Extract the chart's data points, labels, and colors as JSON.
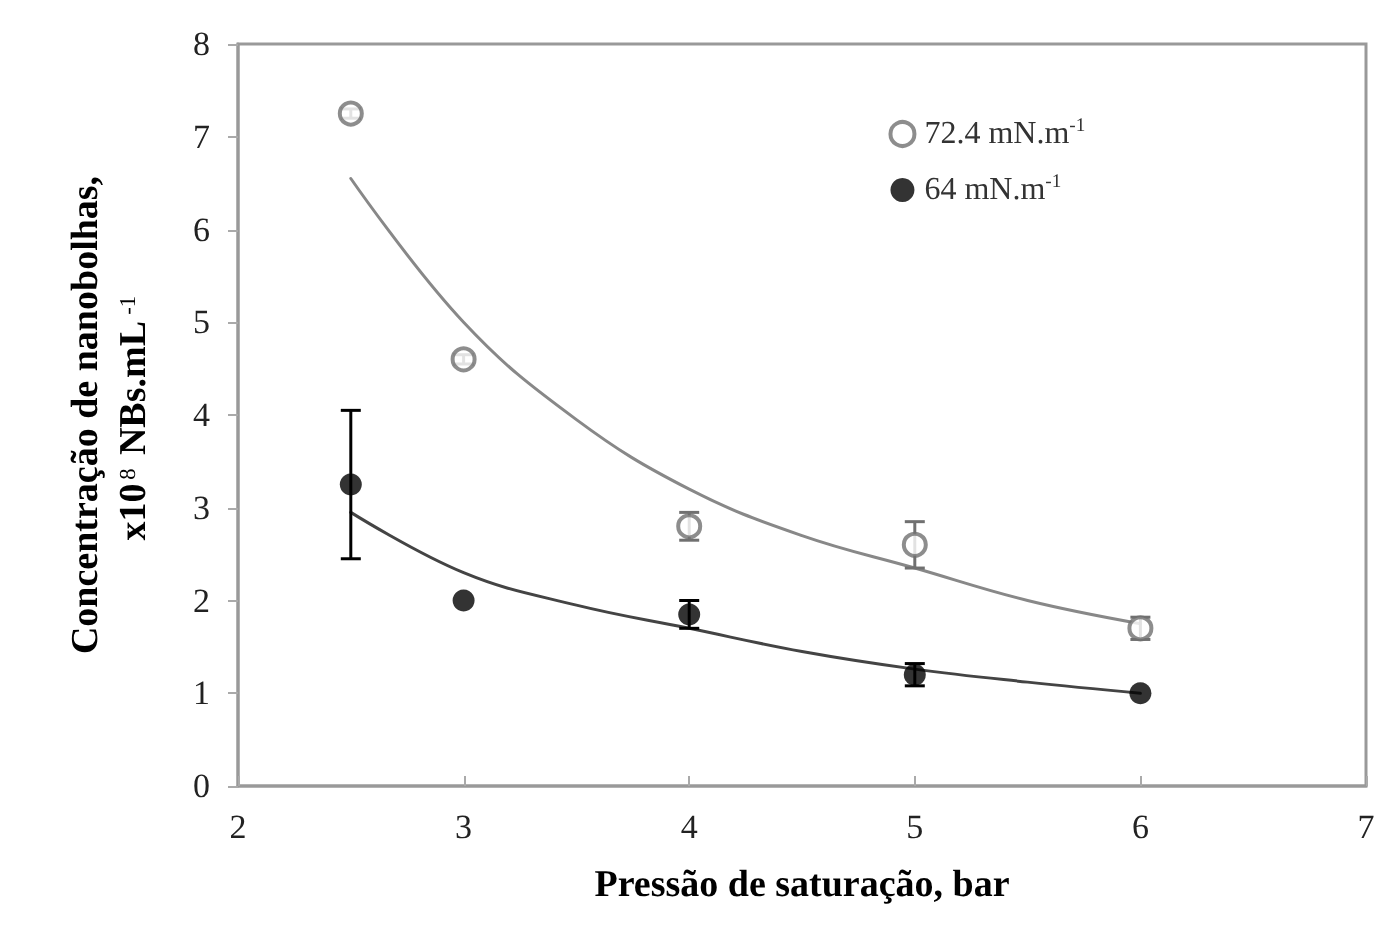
{
  "chart_data": {
    "type": "scatter",
    "xlabel": "Pressão de saturação, bar",
    "ylabel": "Concentração de nanobolhas,\nx10$^{8}$ NBs.mL$^{-1}$",
    "xlim": [
      2,
      7
    ],
    "xticks": [
      2,
      3,
      4,
      5,
      6,
      7
    ],
    "ylim": [
      0,
      8
    ],
    "yticks": [
      0,
      1,
      2,
      3,
      4,
      5,
      6,
      7,
      8
    ],
    "grid": false,
    "legend": "top right",
    "series": [
      {
        "name": "72.4 mN.m$^{-1}$",
        "color": "#707070",
        "marker": "open_circle",
        "x": [
          2.5,
          3,
          4,
          5,
          6
        ],
        "values": [
          7.25,
          4.6,
          2.8,
          2.6,
          1.7
        ],
        "errors": [
          0.05,
          0.05,
          0.15,
          0.25,
          0.12
        ]
      },
      {
        "name": "64 mN.m$^{-1}$",
        "color": "#000000",
        "marker": "circle",
        "x": [
          2.5,
          3,
          4,
          5,
          6
        ],
        "values": [
          3.25,
          2.0,
          1.85,
          1.2,
          1.0
        ],
        "errors": [
          0.8,
          null,
          0.15,
          0.12,
          null
        ]
      },
      {
        "type": "line",
        "color": "#888888",
        "marker": "none",
        "x": [
          2.5,
          3,
          3.5,
          4,
          4.5,
          5,
          5.5,
          6
        ],
        "values": [
          6.55,
          5.0,
          3.95,
          3.2,
          2.7,
          2.35,
          2.0,
          1.75
        ]
      },
      {
        "type": "line",
        "color": "#444444",
        "marker": "none",
        "x": [
          2.5,
          3,
          3.5,
          4,
          4.5,
          5,
          5.5,
          6
        ],
        "values": [
          2.95,
          2.3,
          1.95,
          1.7,
          1.45,
          1.26,
          1.12,
          1.0
        ]
      }
    ]
  }
}
